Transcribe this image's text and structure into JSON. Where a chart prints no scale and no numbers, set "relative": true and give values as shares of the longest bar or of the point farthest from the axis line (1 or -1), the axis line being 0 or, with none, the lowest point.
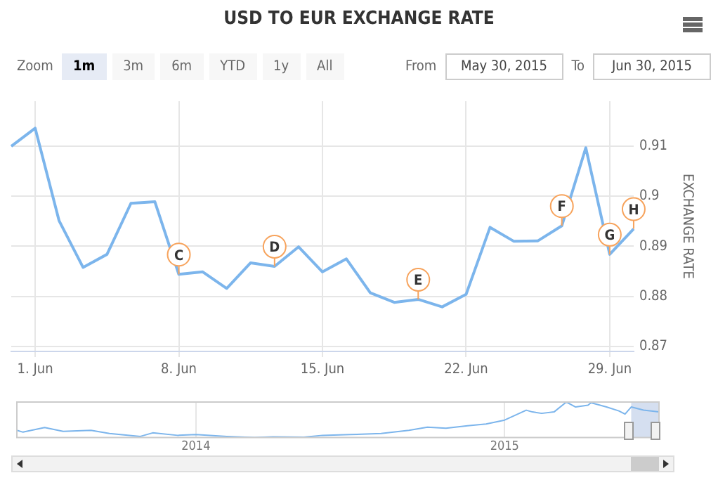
{
  "chart_data": [
    {
      "type": "line",
      "title": "USD TO EUR EXCHANGE RATE",
      "ylabel": "EXCHANGE RATE",
      "categories": [
        null,
        "1. Jun",
        null,
        null,
        null,
        null,
        null,
        "8. Jun",
        null,
        null,
        null,
        null,
        null,
        "15. Jun",
        null,
        null,
        null,
        null,
        null,
        "22. Jun",
        null,
        null,
        null,
        null,
        null,
        "29. Jun",
        null
      ],
      "series": [
        {
          "color": "#7cb5ec",
          "values": [
            0.91,
            0.9136,
            0.8951,
            0.8858,
            0.8884,
            0.8986,
            0.8989,
            0.8844,
            0.8849,
            0.8816,
            0.8867,
            0.886,
            0.8899,
            0.8849,
            0.8875,
            0.8807,
            0.8788,
            0.8794,
            0.8779,
            0.8804,
            0.8938,
            0.891,
            0.8911,
            0.8941,
            0.9097,
            0.8884,
            0.8935
          ]
        }
      ],
      "ylim": [
        0.869,
        0.919
      ],
      "yticks": [
        0.87,
        0.88,
        0.89,
        0.9,
        0.91
      ],
      "grid": true,
      "marker": "none",
      "annotations": [
        "Zoom",
        "1m",
        "3m",
        "6m",
        "YTD",
        "1y",
        "All",
        "From",
        "May 30, 2015",
        "To",
        "Jun 30, 2015",
        {
          "text": "C",
          "x": "8. Jun",
          "y": 0.8844
        },
        {
          "text": "D",
          "y": 0.886
        },
        {
          "text": "E",
          "y": 0.8794
        },
        {
          "text": "F",
          "y": 0.8941
        },
        {
          "text": "G",
          "x": "29. Jun",
          "y": 0.8884
        },
        {
          "text": "H",
          "y": 0.8935
        }
      ]
    },
    {
      "type": "line",
      "relative": true,
      "marker": "none",
      "grid": "x",
      "tick_labels": "x",
      "xlim": [
        2013.42,
        2015.5
      ],
      "xticks": [
        2014,
        2015
      ],
      "x": [
        2013.42,
        2013.44,
        2013.51,
        2013.57,
        2013.66,
        2013.72,
        2013.82,
        2013.86,
        2013.94,
        2014.0,
        2014.1,
        2014.19,
        2014.25,
        2014.35,
        2014.41,
        2014.5,
        2014.6,
        2014.69,
        2014.75,
        2014.81,
        2014.88,
        2014.94,
        2015.0,
        2015.03,
        2015.07,
        2015.09,
        2015.12,
        2015.16,
        2015.2,
        2015.23,
        2015.27,
        2015.28,
        2015.33,
        2015.37,
        2015.39,
        2015.41,
        2015.45,
        2015.5
      ],
      "series": [
        {
          "color": "#7cb5ec",
          "values": [
            0.2,
            0.15,
            0.28,
            0.17,
            0.2,
            0.11,
            0.03,
            0.13,
            0.06,
            0.08,
            0.03,
            0,
            0.02,
            0.01,
            0.06,
            0.08,
            0.11,
            0.2,
            0.29,
            0.26,
            0.33,
            0.38,
            0.49,
            0.61,
            0.77,
            0.72,
            0.68,
            0.72,
            1,
            0.86,
            0.91,
            0.98,
            0.86,
            0.75,
            0.66,
            0.86,
            0.77,
            0.72
          ]
        }
      ],
      "bands": [
        {
          "axis": "x",
          "from": 2015.41,
          "to": 2015.5,
          "color": "#c3d2ea"
        }
      ]
    }
  ]
}
